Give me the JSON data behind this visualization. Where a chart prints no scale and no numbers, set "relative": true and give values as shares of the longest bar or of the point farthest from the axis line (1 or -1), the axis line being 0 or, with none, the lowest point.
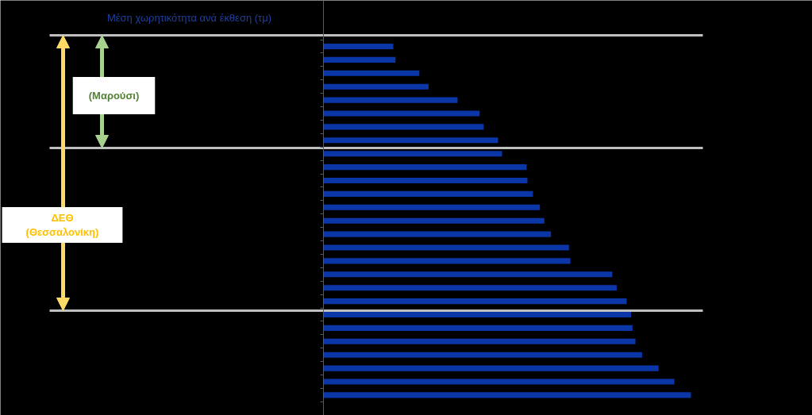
{
  "chart_data": {
    "type": "bar",
    "orientation": "horizontal",
    "relative": true,
    "title": "Μέση χωρητικότητα ανά έκθεση (τμ)",
    "categories": [
      null,
      null,
      null,
      null,
      null,
      null,
      null,
      null,
      null,
      null,
      null,
      null,
      null,
      null,
      null,
      null,
      null,
      null,
      null,
      null,
      null,
      null,
      null,
      null,
      null,
      null,
      null
    ],
    "values": [
      0.19,
      0.196,
      0.261,
      0.286,
      0.365,
      0.425,
      0.436,
      0.475,
      0.486,
      0.553,
      0.555,
      0.57,
      0.589,
      0.601,
      0.619,
      0.668,
      0.672,
      0.786,
      0.798,
      0.825,
      0.837,
      0.841,
      0.849,
      0.867,
      0.912,
      0.955,
      1
    ],
    "color": "#0a36a8",
    "annotations": [
      "(Μαρούσι)",
      "ΔΕΘ\n(Θεσσαλονίκη)"
    ]
  }
}
